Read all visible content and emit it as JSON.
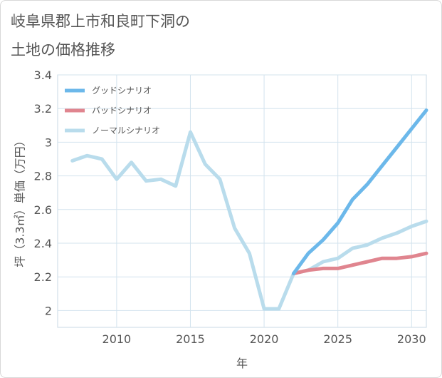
{
  "title": {
    "line1": "岐阜県郡上市和良町下洞の",
    "line2": "土地の価格推移"
  },
  "chart_data": {
    "type": "line",
    "title": "岐阜県郡上市和良町下洞の土地の価格推移",
    "xlabel": "年",
    "ylabel": "坪（3.3㎡）単価（万円）",
    "xlim": [
      2006,
      2031
    ],
    "ylim": [
      1.9,
      3.4
    ],
    "xticks": [
      2010,
      2015,
      2020,
      2025,
      2030
    ],
    "xtick_labels": [
      "2010",
      "2015",
      "2020",
      "2025",
      "2030"
    ],
    "yticks": [
      2.0,
      2.2,
      2.4,
      2.6,
      2.8,
      3.0,
      3.2,
      3.4
    ],
    "ytick_labels": [
      "2",
      "2.2",
      "2.4",
      "2.6",
      "2.8",
      "3",
      "3.2",
      "3.4"
    ],
    "grid": true,
    "legend_position": "top-left",
    "series": [
      {
        "name": "グッドシナリオ",
        "color": "#6cb8ea",
        "x": [
          2022,
          2023,
          2024,
          2025,
          2026,
          2027,
          2028,
          2029,
          2030,
          2031
        ],
        "y": [
          2.22,
          2.34,
          2.42,
          2.52,
          2.66,
          2.75,
          2.86,
          2.97,
          3.08,
          3.19
        ]
      },
      {
        "name": "バッドシナリオ",
        "color": "#e0858f",
        "x": [
          2022,
          2023,
          2024,
          2025,
          2026,
          2027,
          2028,
          2029,
          2030,
          2031
        ],
        "y": [
          2.22,
          2.24,
          2.25,
          2.25,
          2.27,
          2.29,
          2.31,
          2.31,
          2.32,
          2.34
        ]
      },
      {
        "name": "ノーマルシナリオ",
        "color": "#b9dcec",
        "x": [
          2007,
          2008,
          2009,
          2010,
          2011,
          2012,
          2013,
          2014,
          2015,
          2016,
          2017,
          2018,
          2019,
          2020,
          2021,
          2022,
          2023,
          2024,
          2025,
          2026,
          2027,
          2028,
          2029,
          2030,
          2031
        ],
        "y": [
          2.89,
          2.92,
          2.9,
          2.78,
          2.88,
          2.77,
          2.78,
          2.74,
          3.06,
          2.87,
          2.78,
          2.49,
          2.34,
          2.01,
          2.01,
          2.22,
          2.24,
          2.29,
          2.31,
          2.37,
          2.39,
          2.43,
          2.46,
          2.5,
          2.53
        ]
      }
    ]
  }
}
